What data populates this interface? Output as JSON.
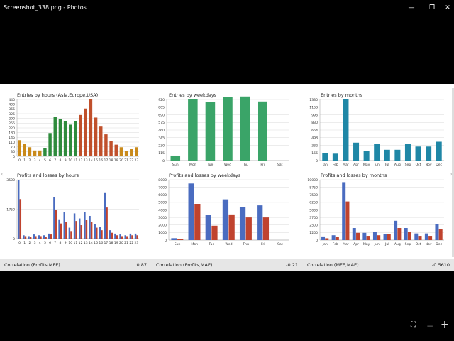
{
  "window": {
    "title": "Screenshot_338.png - Photos",
    "minimize_glyph": "—",
    "maximize_glyph": "❐",
    "close_glyph": "✕"
  },
  "bottom_bar": {
    "fit_glyph": "⛶",
    "zoom_out_glyph": "−",
    "zoom_in_glyph": "+"
  },
  "nav": {
    "prev_glyph": "‹",
    "next_glyph": "›"
  },
  "colors": {
    "background": "#000000",
    "blue": "#3f5fae",
    "red": "#c0392b",
    "green": "#2f9a54",
    "teal": "#1b7a96",
    "orange": "#c77b12"
  },
  "chart_data": [
    {
      "type": "bar",
      "title": "Entries by hours (Asia,Europe,USA)",
      "categories": [
        "0",
        "1",
        "2",
        "3",
        "4",
        "5",
        "6",
        "7",
        "8",
        "9",
        "10",
        "11",
        "12",
        "13",
        "14",
        "15",
        "16",
        "17",
        "18",
        "19",
        "20",
        "21",
        "22",
        "23"
      ],
      "values": [
        125,
        95,
        70,
        45,
        45,
        65,
        180,
        305,
        290,
        270,
        245,
        270,
        320,
        370,
        440,
        300,
        230,
        170,
        120,
        90,
        70,
        40,
        55,
        70
      ],
      "bar_colors": [
        "#c98a1b",
        "#c98a1b",
        "#c98a1b",
        "#c98a1b",
        "#c98a1b",
        "#2e8b3c",
        "#2e8b3c",
        "#2e8b3c",
        "#2e8b3c",
        "#2e8b3c",
        "#2e8b3c",
        "#2e8b3c",
        "#c0502b",
        "#c0502b",
        "#c0502b",
        "#c0502b",
        "#c0502b",
        "#c0502b",
        "#c0502b",
        "#c0502b",
        "#c98a1b",
        "#c98a1b",
        "#c98a1b",
        "#c98a1b"
      ],
      "y_ticks": [
        "0",
        "35",
        "70",
        "110",
        "145",
        "180",
        "220",
        "255",
        "290",
        "325",
        "365",
        "400",
        "440"
      ],
      "ylim": [
        0,
        440
      ]
    },
    {
      "type": "bar",
      "title": "Entries by weekdays",
      "categories": [
        "Sun",
        "Mon",
        "Tue",
        "Wed",
        "Thu",
        "Fri",
        "Sat"
      ],
      "values": [
        75,
        920,
        880,
        955,
        965,
        890,
        0
      ],
      "y_ticks": [
        "0",
        "115",
        "230",
        "345",
        "460",
        "575",
        "690",
        "805",
        "920"
      ],
      "ylim": [
        0,
        920
      ],
      "bar_color": "#3aa468"
    },
    {
      "type": "bar",
      "title": "Entries by months",
      "categories": [
        "Jan",
        "Feb",
        "Mar",
        "Apr",
        "May",
        "Jun",
        "Jul",
        "Aug",
        "Sep",
        "Oct",
        "Nov",
        "Dec"
      ],
      "values": [
        155,
        150,
        1330,
        390,
        215,
        360,
        235,
        235,
        365,
        305,
        305,
        410
      ],
      "y_ticks": [
        "0",
        "166",
        "332",
        "498",
        "664",
        "830",
        "996",
        "1163",
        "1330"
      ],
      "ylim": [
        0,
        1330
      ],
      "bar_color": "#1f87a6"
    },
    {
      "type": "bar",
      "title": "Profits and losses by hours",
      "categories": [
        "0",
        "1",
        "2",
        "3",
        "4",
        "5",
        "6",
        "7",
        "8",
        "9",
        "10",
        "11",
        "12",
        "13",
        "14",
        "15",
        "16",
        "17",
        "18",
        "19",
        "20",
        "21",
        "22",
        "23"
      ],
      "series": [
        {
          "values": [
            3500,
            200,
            150,
            250,
            200,
            200,
            300,
            2450,
            1150,
            1600,
            650,
            1500,
            1200,
            1600,
            1350,
            850,
            700,
            2750,
            500,
            300,
            250,
            200,
            300,
            300
          ]
        },
        {
          "values": [
            2350,
            150,
            100,
            150,
            150,
            100,
            250,
            1700,
            900,
            1000,
            450,
            1050,
            800,
            1100,
            1000,
            650,
            500,
            1850,
            350,
            200,
            150,
            150,
            200,
            200
          ]
        }
      ],
      "y_ticks": [
        "0",
        "1750",
        "3500"
      ],
      "ylim": [
        0,
        3500
      ]
    },
    {
      "type": "bar",
      "title": "Profits and losses by weekdays",
      "categories": [
        "Sun",
        "Mon",
        "Tue",
        "Wed",
        "Thu",
        "Fri",
        "Sat"
      ],
      "series": [
        {
          "values": [
            250,
            7500,
            3300,
            5400,
            4400,
            4600,
            0
          ]
        },
        {
          "values": [
            150,
            4800,
            1900,
            3400,
            3000,
            3000,
            0
          ]
        }
      ],
      "y_ticks": [
        "0",
        "1000",
        "2000",
        "3000",
        "4000",
        "5000",
        "6000",
        "7000",
        "8000"
      ],
      "ylim": [
        0,
        8000
      ]
    },
    {
      "type": "bar",
      "title": "Profits and losses by months",
      "categories": [
        "Jan",
        "Feb",
        "Mar",
        "Apr",
        "May",
        "Jun",
        "Jul",
        "Aug",
        "Sep",
        "Oct",
        "Nov",
        "Dec"
      ],
      "series": [
        {
          "values": [
            600,
            800,
            9600,
            2000,
            1200,
            1300,
            1000,
            3200,
            2000,
            1100,
            1100,
            2700
          ]
        },
        {
          "values": [
            300,
            500,
            6400,
            1200,
            700,
            800,
            1000,
            2000,
            1300,
            700,
            700,
            1800
          ]
        }
      ],
      "y_ticks": [
        "0",
        "1250",
        "2500",
        "3750",
        "5000",
        "6250",
        "7500",
        "8750",
        "10000"
      ],
      "ylim": [
        0,
        10000
      ]
    }
  ],
  "series_colors": [
    "#4a6cc0",
    "#c0432e"
  ],
  "correlations": [
    {
      "label": "Correlation (Profits,MFE)",
      "value": "0.87"
    },
    {
      "label": "Correlation (Profits,MAE)",
      "value": "-0.21"
    },
    {
      "label": "Correlation (MFE,MAE)",
      "value": "-0.5610"
    }
  ]
}
